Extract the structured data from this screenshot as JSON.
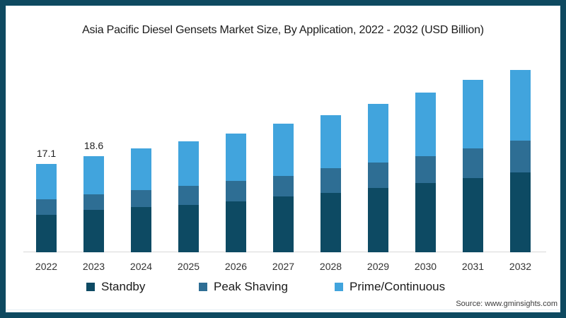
{
  "frame": {
    "border_color": "#0e4960",
    "background": "#ffffff"
  },
  "title": "Asia Pacific Diesel Gensets Market Size, By Application, 2022 - 2032 (USD Billion)",
  "source": "Source: www.gminsights.com",
  "legend": {
    "items": [
      {
        "label": "Standby",
        "swatch_color": "#0d4a63"
      },
      {
        "label": "Peak Shaving",
        "swatch_color": "#2e6e94"
      },
      {
        "label": "Prime/Continuous",
        "swatch_color": "#41a4dd"
      }
    ]
  },
  "chart_data": {
    "type": "bar",
    "stacked": true,
    "title": "Asia Pacific Diesel Gensets Market Size, By Application, 2022 - 2032 (USD Billion)",
    "unit": "USD Billion",
    "categories": [
      "2022",
      "2023",
      "2024",
      "2025",
      "2026",
      "2027",
      "2028",
      "2029",
      "2030",
      "2031",
      "2032"
    ],
    "series": [
      {
        "name": "Standby",
        "color": "#0d4a63",
        "values": [
          7.3,
          8.2,
          8.7,
          9.2,
          9.9,
          10.8,
          11.5,
          12.4,
          13.4,
          14.3,
          15.5
        ]
      },
      {
        "name": "Peak Shaving",
        "color": "#2e6e94",
        "values": [
          3.0,
          3.0,
          3.3,
          3.6,
          3.9,
          4.0,
          4.7,
          5.0,
          5.2,
          5.8,
          6.1
        ]
      },
      {
        "name": "Prime/Continuous",
        "color": "#41a4dd",
        "values": [
          6.8,
          7.4,
          8.1,
          8.6,
          9.1,
          10.0,
          10.3,
          11.3,
          12.3,
          13.2,
          13.7
        ]
      }
    ],
    "totals": [
      17.1,
      18.6,
      20.1,
      21.4,
      22.9,
      24.8,
      26.5,
      28.7,
      30.9,
      33.3,
      35.3
    ],
    "value_labels": [
      "17.1",
      "18.6",
      null,
      null,
      null,
      null,
      null,
      null,
      null,
      null,
      null
    ],
    "ylim": [
      0,
      38
    ],
    "grid": false,
    "legend_position": "bottom",
    "axis_line_color": "#d8d8d8",
    "text_color": "#1f1f1f"
  }
}
